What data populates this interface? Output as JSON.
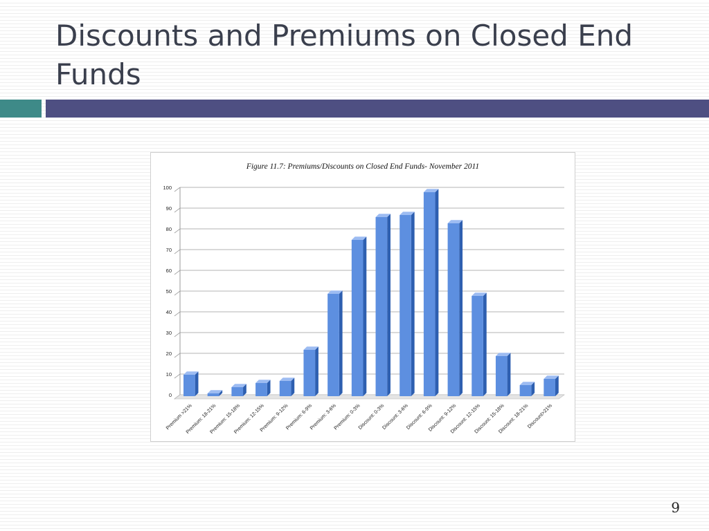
{
  "slide": {
    "title": "Discounts and Premiums on Closed End Funds",
    "page_number": "9"
  },
  "colors": {
    "title_text": "#3a3f4d",
    "accent_teal": "#3e8a88",
    "accent_navy": "#4e4f82",
    "bar_fill": "#5d8fe0",
    "bar_side": "#2e5fb0",
    "bar_top": "#9dbcf2"
  },
  "chart_data": {
    "type": "bar",
    "title": "Figure 11.7: Premiums/Discounts on Closed End Funds- November 2011",
    "xlabel": "",
    "ylabel": "",
    "ylim": [
      0,
      100
    ],
    "yticks": [
      0,
      10,
      20,
      30,
      40,
      50,
      60,
      70,
      80,
      90,
      100
    ],
    "grid": true,
    "legend": "none",
    "style": "3d-columns",
    "categories": [
      "Premium >21%",
      "Premium: 18-21%",
      "Premium: 15-18%",
      "Premium: 12-15%",
      "Premium: 9-12%",
      "Premium: 6-9%",
      "Premium: 3-6%",
      "Premium: 0-3%",
      "Discount: 0-3%",
      "Discount: 3-6%",
      "Discount: 6-9%",
      "Discount: 9-12%",
      "Discount: 12-15%",
      "Discount: 15-18%",
      "Discount: 18-21%",
      "Discount>21%"
    ],
    "values": [
      11,
      2,
      5,
      7,
      8,
      23,
      50,
      76,
      87,
      88,
      99,
      84,
      49,
      20,
      6,
      9
    ]
  }
}
